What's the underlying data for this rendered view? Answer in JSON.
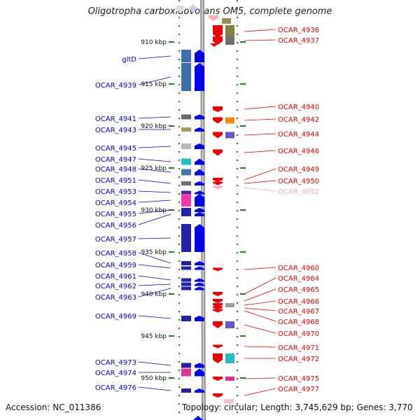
{
  "title": "Oligotropha carboxidovorans OM5, complete genome",
  "accession": "Accession: NC_011386",
  "topology": "Topology: circular; Length: 3,745,629 bp; Genes: 3,770",
  "colors": {
    "forward_label": "#0000cc",
    "reverse_label": "#ee0000",
    "reverse_label_faint": "#f4a6c0",
    "tick_green": "#118811",
    "backbone": "#888888"
  },
  "kbp_ticks": [
    "910 kbp",
    "915 kbp",
    "920 kbp",
    "925 kbp",
    "930 kbp",
    "935 kbp",
    "940 kbp",
    "945 kbp",
    "950 kbp"
  ],
  "forward_genes": [
    "gltD",
    "OCAR_4939",
    "OCAR_4941",
    "OCAR_4943",
    "OCAR_4945",
    "OCAR_4947",
    "OCAR_4948",
    "OCAR_4951",
    "OCAR_4953",
    "OCAR_4954",
    "OCAR_4955",
    "OCAR_4956",
    "OCAR_4957",
    "OCAR_4958",
    "OCAR_4959",
    "OCAR_4961",
    "OCAR_4962",
    "OCAR_4963",
    "OCAR_4969",
    "OCAR_4973",
    "OCAR_4974",
    "OCAR_4976"
  ],
  "reverse_genes": [
    "OCAR_4936",
    "OCAR_4937",
    "OCAR_4940",
    "OCAR_4942",
    "OCAR_4944",
    "OCAR_4946",
    "OCAR_4949",
    "OCAR_4950",
    "OCAR_4952",
    "OCAR_4960",
    "OCAR_4964",
    "OCAR_4965",
    "OCAR_4966",
    "OCAR_4967",
    "OCAR_4968",
    "OCAR_4970",
    "OCAR_4971",
    "OCAR_4972",
    "OCAR_4975",
    "OCAR_4977"
  ]
}
